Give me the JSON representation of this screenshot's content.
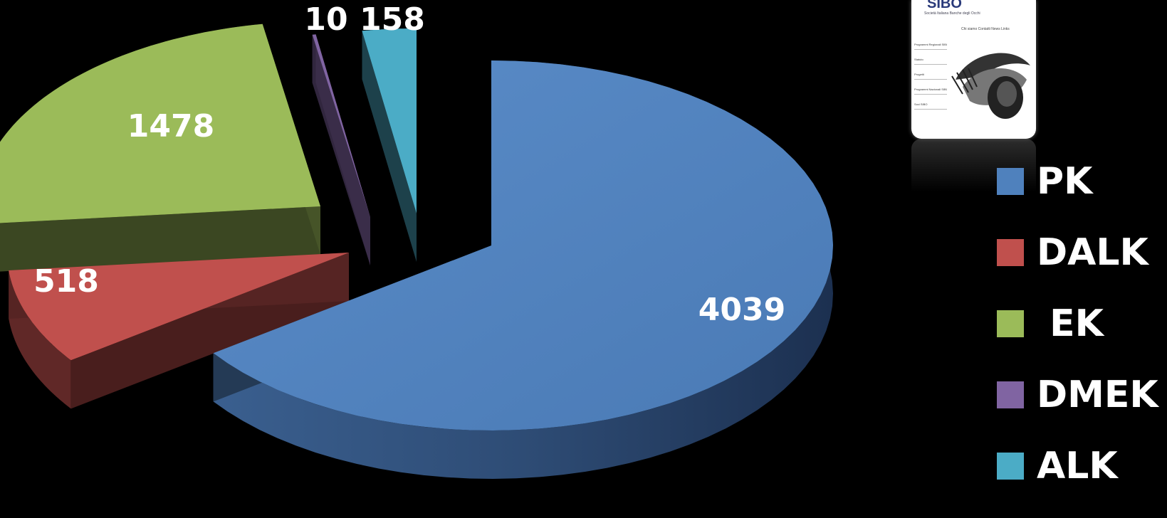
{
  "chart_data": {
    "type": "pie",
    "title": "",
    "categories": [
      "PK",
      "DALK",
      " EK",
      "DMEK",
      "ALK"
    ],
    "values": [
      4039,
      518,
      1478,
      10,
      158
    ],
    "colors": [
      "#4f81bd",
      "#c0504d",
      "#9bbb59",
      "#8064a2",
      "#4bacc6"
    ],
    "style": "3d exploded",
    "legend": "right",
    "data_labels": [
      "4039",
      "518",
      "1478",
      "10",
      "158"
    ]
  },
  "logo": {
    "title": "SIBO",
    "subtitle": "Società Italiana Banche degli Occhi",
    "menu": "Chi siamo   Contatti   News   Links",
    "side_items": [
      "Programmi Regionali SIBO",
      "Statuto",
      "Progetti",
      "Programmi Nazionali SIBO",
      "Soci SIBO"
    ],
    "image": "eye-illustration"
  }
}
